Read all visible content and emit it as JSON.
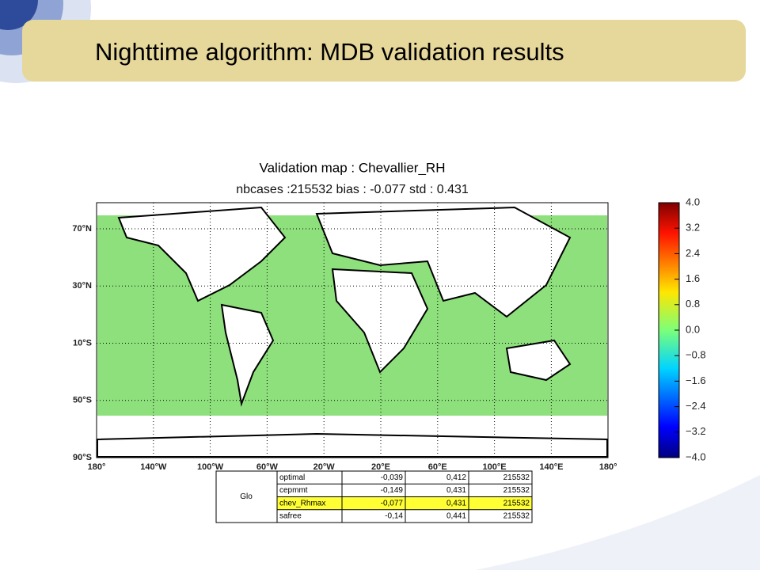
{
  "header": {
    "title": "Nighttime algorithm: MDB validation results"
  },
  "map": {
    "title": "Validation map : Chevallier_RH",
    "subtitle": "nbcases :215532 bias : -0.077 std : 0.431",
    "lat_labels": [
      "70°N",
      "30°N",
      "10°S",
      "50°S",
      "90°S"
    ],
    "lon_labels": [
      "180°",
      "140°W",
      "100°W",
      "60°W",
      "20°W",
      "20°E",
      "60°E",
      "100°E",
      "140°E",
      "180°"
    ],
    "colorbar_labels": [
      "4.0",
      "3.2",
      "2.4",
      "1.6",
      "0.8",
      "0.0",
      "−0.8",
      "−1.6",
      "−2.4",
      "−3.2",
      "−4.0"
    ]
  },
  "table": {
    "region": "Glo",
    "rows": [
      [
        "optimal",
        "-0,039",
        "0,412",
        "215532"
      ],
      [
        "cepmmt",
        "-0,149",
        "0,431",
        "215532"
      ],
      [
        "chev_Rhmax",
        "-0,077",
        "0,431",
        "215532"
      ],
      [
        "safree",
        "-0,14",
        "0,441",
        "215532"
      ]
    ]
  }
}
